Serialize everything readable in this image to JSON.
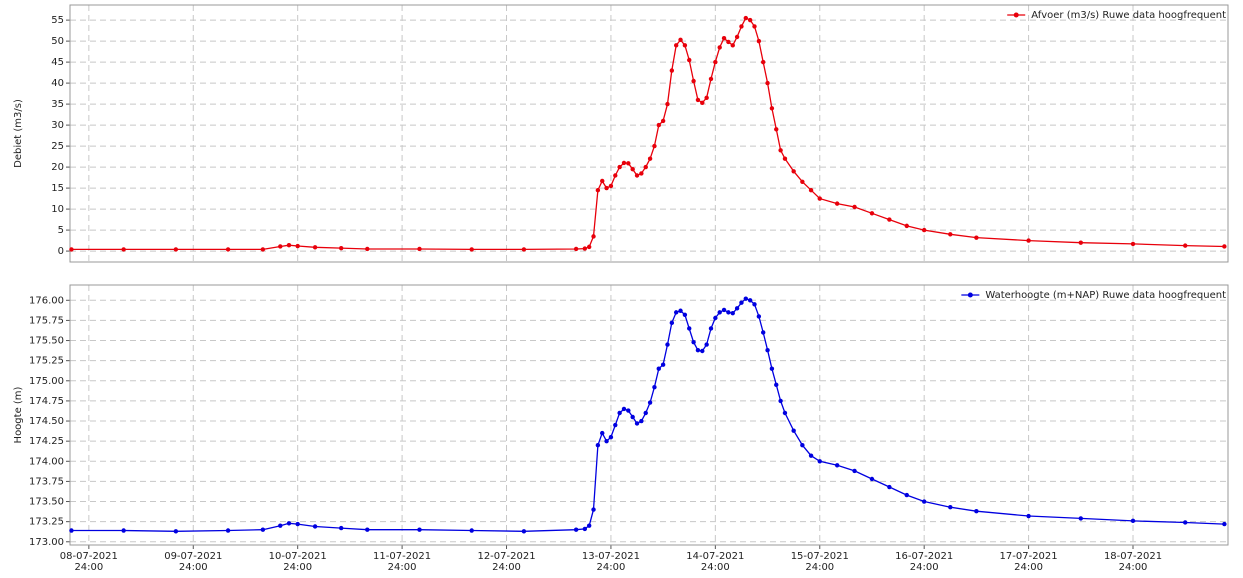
{
  "chart_data": [
    {
      "type": "line",
      "ylabel": "Debiet (m3/s)",
      "ylim": [
        -2.6,
        58.6
      ],
      "yticks": [
        0,
        5,
        10,
        15,
        20,
        25,
        30,
        35,
        40,
        45,
        50,
        55
      ],
      "grid": true,
      "legend": "upper right",
      "xlim": [
        "2021-07-08 19:40",
        "2021-07-19 21:50"
      ],
      "x": [
        "2021-07-08 20:00",
        "2021-07-09 08:00",
        "2021-07-09 20:00",
        "2021-07-10 08:00",
        "2021-07-10 16:00",
        "2021-07-10 20:00",
        "2021-07-10 22:00",
        "2021-07-11 00:00",
        "2021-07-11 04:00",
        "2021-07-11 10:00",
        "2021-07-11 16:00",
        "2021-07-12 04:00",
        "2021-07-12 16:00",
        "2021-07-13 04:00",
        "2021-07-13 16:00",
        "2021-07-13 18:00",
        "2021-07-13 19:00",
        "2021-07-13 20:00",
        "2021-07-13 21:00",
        "2021-07-13 22:00",
        "2021-07-13 23:00",
        "2021-07-14 00:00",
        "2021-07-14 01:00",
        "2021-07-14 02:00",
        "2021-07-14 03:00",
        "2021-07-14 04:00",
        "2021-07-14 05:00",
        "2021-07-14 06:00",
        "2021-07-14 07:00",
        "2021-07-14 08:00",
        "2021-07-14 09:00",
        "2021-07-14 10:00",
        "2021-07-14 11:00",
        "2021-07-14 12:00",
        "2021-07-14 13:00",
        "2021-07-14 14:00",
        "2021-07-14 15:00",
        "2021-07-14 16:00",
        "2021-07-14 17:00",
        "2021-07-14 18:00",
        "2021-07-14 19:00",
        "2021-07-14 20:00",
        "2021-07-14 21:00",
        "2021-07-14 22:00",
        "2021-07-14 23:00",
        "2021-07-15 00:00",
        "2021-07-15 01:00",
        "2021-07-15 02:00",
        "2021-07-15 03:00",
        "2021-07-15 04:00",
        "2021-07-15 05:00",
        "2021-07-15 06:00",
        "2021-07-15 07:00",
        "2021-07-15 08:00",
        "2021-07-15 09:00",
        "2021-07-15 10:00",
        "2021-07-15 11:00",
        "2021-07-15 12:00",
        "2021-07-15 13:00",
        "2021-07-15 14:00",
        "2021-07-15 15:00",
        "2021-07-15 16:00",
        "2021-07-15 18:00",
        "2021-07-15 20:00",
        "2021-07-15 22:00",
        "2021-07-16 00:00",
        "2021-07-16 04:00",
        "2021-07-16 08:00",
        "2021-07-16 12:00",
        "2021-07-16 16:00",
        "2021-07-16 20:00",
        "2021-07-17 00:00",
        "2021-07-17 06:00",
        "2021-07-17 12:00",
        "2021-07-18 00:00",
        "2021-07-18 12:00",
        "2021-07-19 00:00",
        "2021-07-19 12:00",
        "2021-07-19 21:00"
      ],
      "series": [
        {
          "name": "Afvoer (m3/s) Ruwe data hoogfrequent",
          "color": "#e8000b",
          "values": [
            0.4,
            0.4,
            0.4,
            0.4,
            0.4,
            1.1,
            1.4,
            1.2,
            0.9,
            0.7,
            0.5,
            0.5,
            0.4,
            0.4,
            0.5,
            0.6,
            1.0,
            3.5,
            14.5,
            16.7,
            15.0,
            15.5,
            18,
            20,
            21,
            20.9,
            19.5,
            18,
            18.5,
            20,
            22,
            25,
            30,
            31,
            35,
            43,
            49,
            50.3,
            49,
            45.5,
            40.5,
            36,
            35.3,
            36.5,
            41,
            45,
            48.5,
            50.7,
            49.8,
            49,
            51,
            53.5,
            55.5,
            55,
            53.5,
            50,
            45,
            40,
            34,
            29,
            24,
            22,
            19,
            16.5,
            14.5,
            12.5,
            11.3,
            10.5,
            9,
            7.5,
            6,
            5,
            4,
            3.2,
            2.5,
            2.0,
            1.7,
            1.3,
            1.1
          ]
        }
      ]
    },
    {
      "type": "line",
      "ylabel": "Hoogte (m)",
      "ylim": [
        172.96,
        176.19
      ],
      "yticks": [
        {
          "value": 173,
          "label": "173.00"
        },
        {
          "value": 173.25,
          "label": "173.25"
        },
        {
          "value": 173.5,
          "label": "173.50"
        },
        {
          "value": 173.75,
          "label": "173.75"
        },
        {
          "value": 174,
          "label": "174.00"
        },
        {
          "value": 174.25,
          "label": "174.25"
        },
        {
          "value": 174.5,
          "label": "174.50"
        },
        {
          "value": 174.75,
          "label": "174.75"
        },
        {
          "value": 175,
          "label": "175.00"
        },
        {
          "value": 175.25,
          "label": "175.25"
        },
        {
          "value": 175.5,
          "label": "175.50"
        },
        {
          "value": 175.75,
          "label": "175.75"
        },
        {
          "value": 176,
          "label": "176.00"
        }
      ],
      "grid": true,
      "legend": "upper right",
      "xlim": [
        "2021-07-08 19:40",
        "2021-07-19 21:50"
      ],
      "xticks": [
        {
          "value": "2021-07-09 00:00",
          "label": "08-07-2021 24:00"
        },
        {
          "value": "2021-07-10 00:00",
          "label": "09-07-2021 24:00"
        },
        {
          "value": "2021-07-11 00:00",
          "label": "10-07-2021 24:00"
        },
        {
          "value": "2021-07-12 00:00",
          "label": "11-07-2021 24:00"
        },
        {
          "value": "2021-07-13 00:00",
          "label": "12-07-2021 24:00"
        },
        {
          "value": "2021-07-14 00:00",
          "label": "13-07-2021 24:00"
        },
        {
          "value": "2021-07-15 00:00",
          "label": "14-07-2021 24:00"
        },
        {
          "value": "2021-07-16 00:00",
          "label": "15-07-2021 24:00"
        },
        {
          "value": "2021-07-17 00:00",
          "label": "16-07-2021 24:00"
        },
        {
          "value": "2021-07-18 00:00",
          "label": "17-07-2021 24:00"
        },
        {
          "value": "2021-07-19 00:00",
          "label": "18-07-2021 24:00"
        }
      ],
      "x": [
        "2021-07-08 20:00",
        "2021-07-09 08:00",
        "2021-07-09 20:00",
        "2021-07-10 08:00",
        "2021-07-10 16:00",
        "2021-07-10 20:00",
        "2021-07-10 22:00",
        "2021-07-11 00:00",
        "2021-07-11 04:00",
        "2021-07-11 10:00",
        "2021-07-11 16:00",
        "2021-07-12 04:00",
        "2021-07-12 16:00",
        "2021-07-13 04:00",
        "2021-07-13 16:00",
        "2021-07-13 18:00",
        "2021-07-13 19:00",
        "2021-07-13 20:00",
        "2021-07-13 21:00",
        "2021-07-13 22:00",
        "2021-07-13 23:00",
        "2021-07-14 00:00",
        "2021-07-14 01:00",
        "2021-07-14 02:00",
        "2021-07-14 03:00",
        "2021-07-14 04:00",
        "2021-07-14 05:00",
        "2021-07-14 06:00",
        "2021-07-14 07:00",
        "2021-07-14 08:00",
        "2021-07-14 09:00",
        "2021-07-14 10:00",
        "2021-07-14 11:00",
        "2021-07-14 12:00",
        "2021-07-14 13:00",
        "2021-07-14 14:00",
        "2021-07-14 15:00",
        "2021-07-14 16:00",
        "2021-07-14 17:00",
        "2021-07-14 18:00",
        "2021-07-14 19:00",
        "2021-07-14 20:00",
        "2021-07-14 21:00",
        "2021-07-14 22:00",
        "2021-07-14 23:00",
        "2021-07-15 00:00",
        "2021-07-15 01:00",
        "2021-07-15 02:00",
        "2021-07-15 03:00",
        "2021-07-15 04:00",
        "2021-07-15 05:00",
        "2021-07-15 06:00",
        "2021-07-15 07:00",
        "2021-07-15 08:00",
        "2021-07-15 09:00",
        "2021-07-15 10:00",
        "2021-07-15 11:00",
        "2021-07-15 12:00",
        "2021-07-15 13:00",
        "2021-07-15 14:00",
        "2021-07-15 15:00",
        "2021-07-15 16:00",
        "2021-07-15 18:00",
        "2021-07-15 20:00",
        "2021-07-15 22:00",
        "2021-07-16 00:00",
        "2021-07-16 04:00",
        "2021-07-16 08:00",
        "2021-07-16 12:00",
        "2021-07-16 16:00",
        "2021-07-16 20:00",
        "2021-07-17 00:00",
        "2021-07-17 06:00",
        "2021-07-17 12:00",
        "2021-07-18 00:00",
        "2021-07-18 12:00",
        "2021-07-19 00:00",
        "2021-07-19 12:00",
        "2021-07-19 21:00"
      ],
      "series": [
        {
          "name": "Waterhoogte (m+NAP) Ruwe data hoogfrequent",
          "color": "#0000e0",
          "values": [
            173.14,
            173.14,
            173.13,
            173.14,
            173.15,
            173.2,
            173.23,
            173.22,
            173.19,
            173.17,
            173.15,
            173.15,
            173.14,
            173.13,
            173.15,
            173.16,
            173.2,
            173.4,
            174.2,
            174.35,
            174.25,
            174.3,
            174.45,
            174.6,
            174.65,
            174.63,
            174.55,
            174.47,
            174.5,
            174.6,
            174.73,
            174.92,
            175.15,
            175.2,
            175.45,
            175.72,
            175.85,
            175.87,
            175.82,
            175.65,
            175.48,
            175.38,
            175.37,
            175.45,
            175.65,
            175.78,
            175.85,
            175.88,
            175.85,
            175.84,
            175.9,
            175.97,
            176.02,
            176.0,
            175.95,
            175.8,
            175.6,
            175.38,
            175.15,
            174.95,
            174.75,
            174.6,
            174.38,
            174.2,
            174.07,
            174.0,
            173.95,
            173.88,
            173.78,
            173.68,
            173.58,
            173.5,
            173.43,
            173.38,
            173.32,
            173.29,
            173.26,
            173.24,
            173.22
          ]
        }
      ]
    }
  ]
}
